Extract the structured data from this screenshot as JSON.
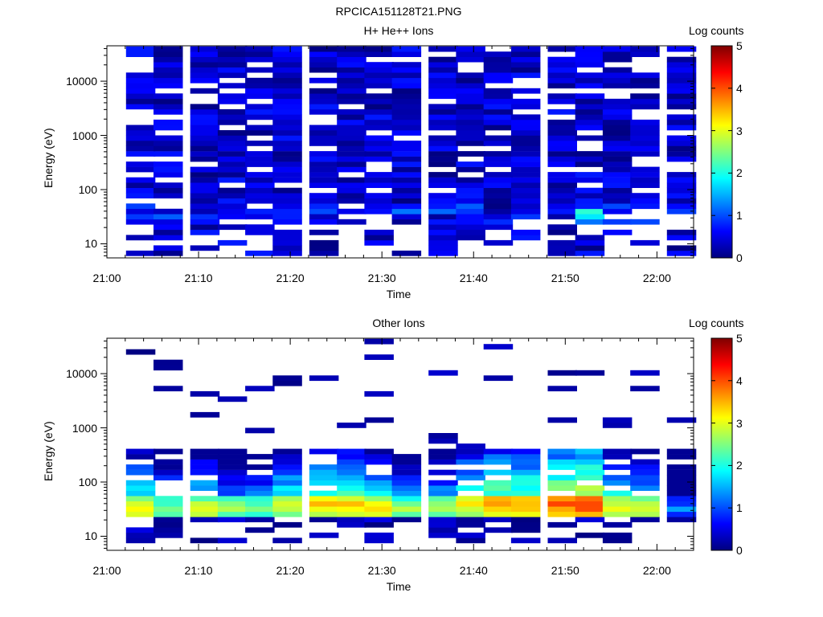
{
  "page_title": "RPCICA151128T21.PNG",
  "chart_data": [
    {
      "type": "heatmap",
      "title": "H+ He++ Ions",
      "xlabel": "Time",
      "ylabel": "Energy (eV)",
      "x_range": [
        "21:00",
        "22:04"
      ],
      "x_ticks": [
        "21:00",
        "21:10",
        "21:20",
        "21:30",
        "21:40",
        "21:50",
        "22:00"
      ],
      "ylim": [
        5.5,
        45000
      ],
      "y_scale": "log",
      "y_ticks": [
        "10",
        "100",
        "1000",
        "10000"
      ],
      "colorbar": {
        "label": "Log counts",
        "range": [
          0,
          5
        ],
        "ticks": [
          "0",
          "1",
          "2",
          "3",
          "4",
          "5"
        ]
      },
      "columns": [
        "21:02",
        "21:05",
        "21:09",
        "21:12",
        "21:15",
        "21:18",
        "21:22",
        "21:25",
        "21:28",
        "21:31",
        "21:35",
        "21:38",
        "21:41",
        "21:44",
        "21:48",
        "21:51",
        "21:54",
        "21:57",
        "22:01"
      ],
      "notes": "Broad low-level background (log counts ~0-0.8) from 6 eV to 45 keV; slight enhancement near 30-50 eV peaking ~2 at 21:51"
    },
    {
      "type": "heatmap",
      "title": "Other Ions",
      "xlabel": "Time",
      "ylabel": "Energy (eV)",
      "x_range": [
        "21:00",
        "22:04"
      ],
      "x_ticks": [
        "21:00",
        "21:10",
        "21:20",
        "21:30",
        "21:40",
        "21:50",
        "22:00"
      ],
      "ylim": [
        5.5,
        45000
      ],
      "y_scale": "log",
      "y_ticks": [
        "10",
        "100",
        "1000",
        "10000"
      ],
      "colorbar": {
        "label": "Log counts",
        "range": [
          0,
          5
        ],
        "ticks": [
          "0",
          "1",
          "2",
          "3",
          "4",
          "5"
        ]
      },
      "columns": [
        "21:02",
        "21:05",
        "21:09",
        "21:12",
        "21:15",
        "21:18",
        "21:22",
        "21:25",
        "21:28",
        "21:31",
        "21:35",
        "21:38",
        "21:41",
        "21:44",
        "21:48",
        "21:51",
        "21:54",
        "21:57",
        "22:01"
      ],
      "peak_log_counts": [
        3.2,
        2.6,
        3.0,
        2.6,
        2.6,
        3.0,
        3.5,
        3.4,
        3.2,
        2.7,
        2.8,
        3.3,
        3.6,
        3.6,
        3.9,
        4.2,
        3.2,
        3.0,
        1.3
      ],
      "peak_energy_eV": [
        33,
        33,
        33,
        33,
        33,
        40,
        40,
        40,
        33,
        33,
        33,
        40,
        40,
        40,
        40,
        40,
        33,
        33,
        33
      ],
      "notes": "Strong band at ~25-60 eV in every column; weak sparse counts up to ~35 keV"
    }
  ]
}
